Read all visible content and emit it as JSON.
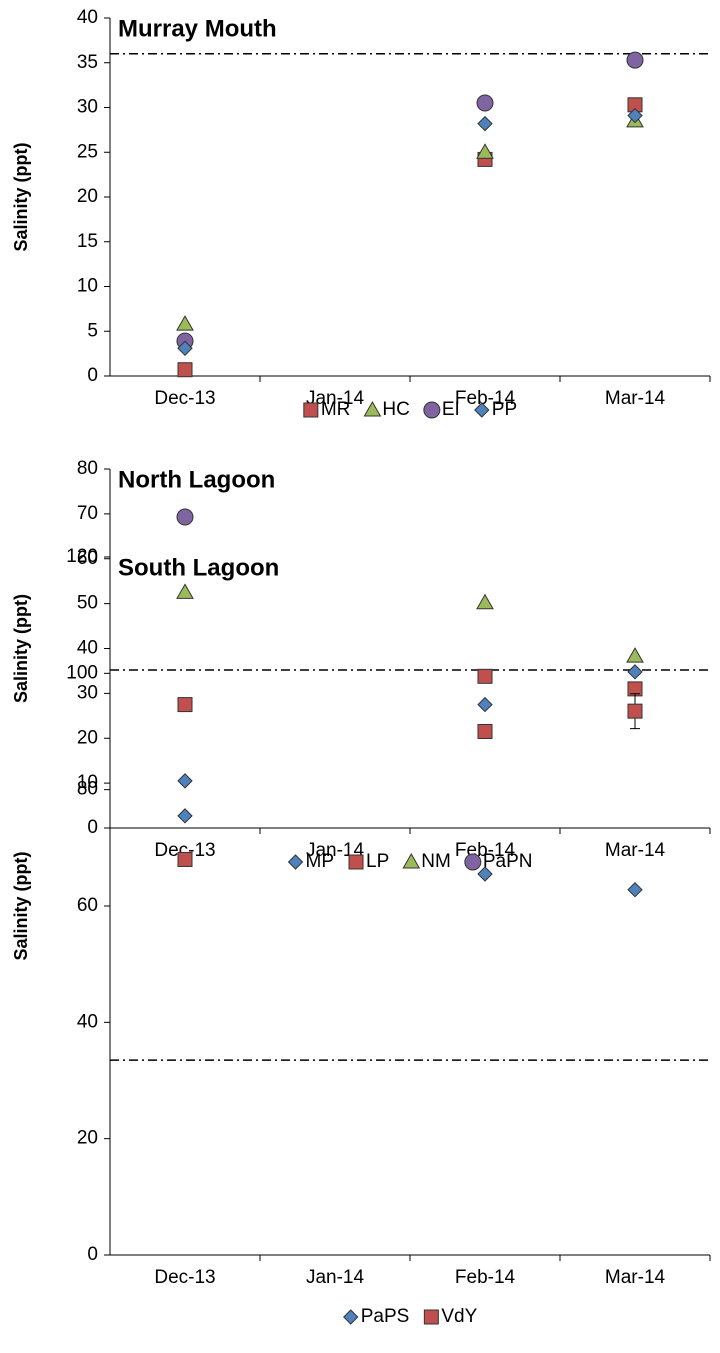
{
  "chart_data": [
    {
      "type": "scatter",
      "title": "Murray Mouth",
      "y_label": "Salinity (ppt)",
      "categories": [
        "Dec-13",
        "Jan-14",
        "Feb-14",
        "Mar-14"
      ],
      "ylim": [
        0,
        40
      ],
      "yticks": [
        0,
        5,
        10,
        15,
        20,
        25,
        30,
        35,
        40
      ],
      "reference_line": 36,
      "series": [
        {
          "name": "MR",
          "color": "#c0504d",
          "marker": "square",
          "values": [
            0.7,
            null,
            24.2,
            30.3
          ]
        },
        {
          "name": "HC",
          "color": "#9bbb59",
          "marker": "triangle",
          "values": [
            5.8,
            null,
            25,
            28.5
          ]
        },
        {
          "name": "EI",
          "color": "#8064a2",
          "marker": "circle",
          "values": [
            3.9,
            null,
            30.5,
            35.3
          ]
        },
        {
          "name": "PP",
          "color": "#4f81bd",
          "marker": "diamond",
          "values": [
            3.1,
            null,
            28.2,
            29.1
          ]
        }
      ]
    },
    {
      "type": "scatter",
      "title": "North Lagoon",
      "y_label": "Salinity (ppt)",
      "categories": [
        "Dec-13",
        "Jan-14",
        "Feb-14",
        "Mar-14"
      ],
      "ylim": [
        0,
        80
      ],
      "yticks": [
        0,
        10,
        20,
        30,
        40,
        50,
        60,
        70,
        80
      ],
      "reference_line": 35.2,
      "series": [
        {
          "name": "MP",
          "color": "#4f81bd",
          "marker": "diamond",
          "values": [
            10.5,
            null,
            27.5,
            34.8
          ]
        },
        {
          "name": "LP",
          "color": "#c0504d",
          "marker": "square",
          "values": [
            27.5,
            null,
            33.8,
            31
          ]
        },
        {
          "name": "NM",
          "color": "#9bbb59",
          "marker": "triangle",
          "values": [
            52.5,
            null,
            50.2,
            38.3
          ]
        },
        {
          "name": "PaPN",
          "color": "#8064a2",
          "marker": "circle",
          "values": [
            69.3,
            null,
            null,
            null
          ]
        }
      ]
    },
    {
      "type": "scatter",
      "title": "South Lagoon",
      "y_label": "Salinity (ppt)",
      "categories": [
        "Dec-13",
        "Jan-14",
        "Feb-14",
        "Mar-14"
      ],
      "ylim": [
        0,
        120
      ],
      "yticks": [
        0,
        20,
        40,
        60,
        80,
        100,
        120
      ],
      "reference_line": 33.5,
      "series": [
        {
          "name": "PaPS",
          "color": "#4f81bd",
          "marker": "diamond",
          "values": [
            75.5,
            null,
            65.5,
            62.8
          ]
        },
        {
          "name": "VdY",
          "color": "#c0504d",
          "marker": "square",
          "values": [
            68,
            null,
            90,
            93.5
          ],
          "errors": [
            null,
            null,
            null,
            3
          ]
        }
      ]
    }
  ]
}
